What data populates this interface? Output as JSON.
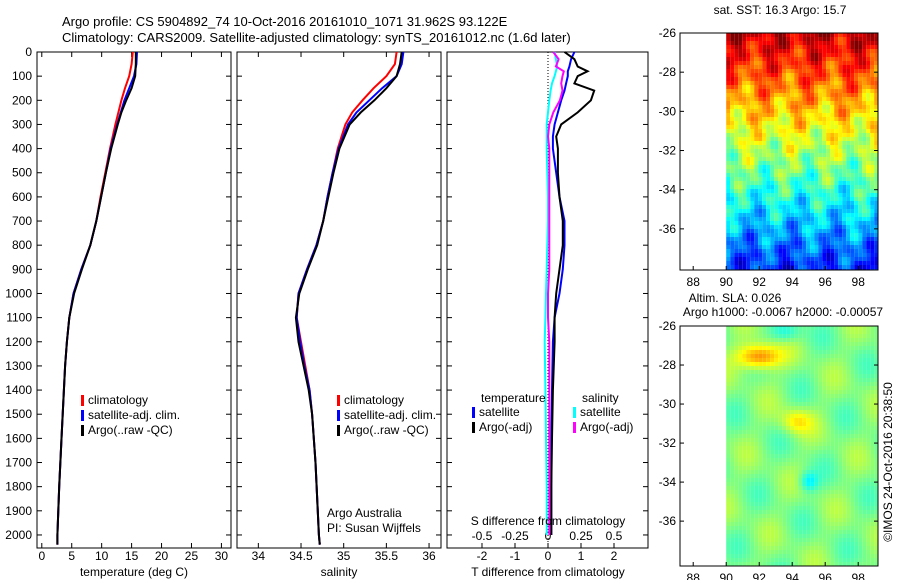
{
  "title_line1": "Argo profile: CS 5904892_74 10-Oct-2016 20161010_1071 31.962S 93.122E",
  "title_line2": "Climatology: CARS2009. Satellite-adjusted climatology: synTS_20161012.nc (1.6d later)",
  "credit": "Argo Australia",
  "pi": "PI: Susan Wijffels",
  "timestamp": "©IMOS 24-Oct-2016 20:38:50",
  "colors": {
    "climatology": "#ff0000",
    "satellite": "#0000ff",
    "argo": "#000000",
    "sal_satellite": "#00ffff",
    "sal_argo": "#ff00ff"
  },
  "chart_data": [
    {
      "type": "line",
      "id": "temperature",
      "xlabel": "temperature (deg C)",
      "ylabel": "",
      "xlim": [
        -0.8,
        31.6
      ],
      "ylim": [
        2054,
        0
      ],
      "xticks": [
        0,
        5,
        10,
        15,
        20,
        25,
        30
      ],
      "yticks": [
        0,
        100,
        200,
        300,
        400,
        500,
        600,
        700,
        800,
        900,
        1000,
        1100,
        1200,
        1300,
        1400,
        1500,
        1600,
        1700,
        1800,
        1900,
        2000
      ],
      "legend": [
        "climatology",
        "satellite-adj. clim.",
        "Argo(..raw -QC)"
      ],
      "depth": [
        0,
        50,
        100,
        150,
        200,
        250,
        300,
        400,
        500,
        600,
        700,
        800,
        900,
        1000,
        1100,
        1200,
        1300,
        1400,
        1600,
        1800,
        2000,
        2040
      ],
      "series": [
        {
          "name": "climatology",
          "values": [
            15.2,
            15.0,
            14.6,
            13.9,
            13.3,
            12.8,
            12.3,
            11.4,
            10.6,
            9.8,
            9.1,
            8.1,
            6.6,
            5.3,
            4.6,
            4.2,
            3.9,
            3.7,
            3.3,
            2.9,
            2.6,
            2.6
          ]
        },
        {
          "name": "satellite-adj. clim.",
          "values": [
            15.9,
            15.8,
            15.4,
            14.6,
            13.8,
            13.2,
            12.6,
            11.5,
            10.7,
            9.9,
            9.1,
            8.1,
            6.6,
            5.3,
            4.6,
            4.2,
            3.9,
            3.7,
            3.3,
            2.9,
            2.6,
            2.6
          ]
        },
        {
          "name": "Argo(..raw -QC)",
          "values": [
            15.7,
            15.7,
            15.6,
            15.0,
            14.1,
            13.3,
            12.7,
            11.6,
            10.7,
            9.9,
            9.1,
            8.1,
            6.7,
            5.4,
            4.6,
            4.2,
            3.9,
            3.7,
            3.3,
            2.9,
            2.6,
            2.6
          ]
        }
      ]
    },
    {
      "type": "line",
      "id": "salinity",
      "xlabel": "salinity",
      "xlim": [
        33.75,
        36.14
      ],
      "ylim": [
        2054,
        0
      ],
      "xticks": [
        34,
        34.5,
        35,
        35.5,
        36
      ],
      "legend": [
        "climatology",
        "satellite-adj. clim.",
        "Argo(..raw -QC)"
      ],
      "depth": [
        0,
        50,
        100,
        150,
        200,
        250,
        300,
        400,
        500,
        600,
        700,
        800,
        900,
        1000,
        1100,
        1200,
        1300,
        1400,
        1500,
        1700,
        2000,
        2040
      ],
      "series": [
        {
          "name": "climatology",
          "values": [
            35.62,
            35.6,
            35.5,
            35.35,
            35.22,
            35.1,
            35.02,
            34.93,
            34.87,
            34.81,
            34.76,
            34.68,
            34.57,
            34.47,
            34.45,
            34.5,
            34.55,
            34.6,
            34.63,
            34.67,
            34.71,
            34.72
          ]
        },
        {
          "name": "satellite-adj. clim.",
          "values": [
            35.7,
            35.68,
            35.62,
            35.45,
            35.3,
            35.15,
            35.05,
            34.94,
            34.87,
            34.81,
            34.76,
            34.68,
            34.57,
            34.47,
            34.45,
            34.49,
            34.54,
            34.6,
            34.63,
            34.67,
            34.71,
            34.72
          ]
        },
        {
          "name": "Argo(..raw -QC)",
          "values": [
            35.68,
            35.66,
            35.62,
            35.5,
            35.36,
            35.2,
            35.07,
            34.95,
            34.88,
            34.82,
            34.76,
            34.69,
            34.58,
            34.48,
            34.44,
            34.47,
            34.53,
            34.59,
            34.63,
            34.67,
            34.71,
            34.72
          ]
        }
      ]
    },
    {
      "type": "line",
      "id": "difference",
      "xlabel": "T difference from climatology",
      "x2label": "S difference from climatology",
      "xlim": [
        -3.06,
        3.03
      ],
      "xticks": [
        -2,
        -1,
        0,
        1,
        2
      ],
      "xticklabels": [
        "-2",
        "-1",
        "0",
        "1",
        "2"
      ],
      "s_ticks": [
        -0.5,
        -0.25,
        0,
        0.25,
        0.5
      ],
      "s_ticklabels": [
        "-0.5",
        "-0.25",
        "0",
        "0.25",
        "0.5"
      ],
      "legend_t_title": "temperature",
      "legend_s_title": "salinity",
      "legend_t": [
        "satellite",
        "Argo(-adj)"
      ],
      "legend_s": [
        "satellite",
        "Argo(-adj)"
      ],
      "depth": [
        0,
        30,
        60,
        80,
        100,
        130,
        160,
        200,
        250,
        300,
        350,
        400,
        500,
        600,
        700,
        800,
        900,
        1000,
        1100,
        1200,
        1400,
        1600,
        1800,
        2000
      ],
      "series": [
        {
          "name": "T satellite",
          "values": [
            0.8,
            0.7,
            0.65,
            0.6,
            0.6,
            0.55,
            0.5,
            0.4,
            0.3,
            0.2,
            0.15,
            0.15,
            0.25,
            0.35,
            0.5,
            0.5,
            0.45,
            0.35,
            0.2,
            0.15,
            0.12,
            0.1,
            0.1,
            0.1
          ]
        },
        {
          "name": "T Argo(-adj)",
          "values": [
            0.5,
            0.8,
            0.9,
            1.2,
            0.9,
            0.8,
            1.4,
            1.3,
            0.9,
            0.4,
            0.25,
            0.3,
            0.3,
            0.35,
            0.45,
            0.45,
            0.35,
            0.25,
            0.2,
            0.2,
            0.15,
            0.12,
            0.1,
            0.1
          ]
        },
        {
          "name": "S satellite",
          "values": [
            0.05,
            0.06,
            0.07,
            0.06,
            0.05,
            0.03,
            0.02,
            0.01,
            0.0,
            -0.01,
            -0.01,
            -0.01,
            -0.005,
            0.0,
            0.0,
            -0.005,
            -0.01,
            -0.015,
            -0.02,
            -0.025,
            -0.02,
            -0.015,
            -0.01,
            -0.01
          ]
        },
        {
          "name": "S Argo(-adj)",
          "values": [
            0.04,
            0.08,
            0.06,
            0.12,
            0.11,
            0.1,
            0.11,
            0.09,
            0.04,
            0.01,
            0.0,
            0.01,
            0.01,
            0.01,
            0.01,
            0.01,
            0.01,
            0.0,
            0.0,
            0.01,
            0.01,
            0.01,
            0.01,
            0.01
          ]
        }
      ]
    },
    {
      "type": "heatmap",
      "id": "sst-map",
      "title": "sat. SST: 16.3 Argo: 15.7",
      "xlim": [
        87.2,
        99.2
      ],
      "ylim": [
        -38.1,
        -26
      ],
      "xticks": [
        88,
        90,
        92,
        94,
        96,
        98
      ],
      "yticks": [
        -26,
        -28,
        -30,
        -32,
        -34,
        -36
      ],
      "data_lon_start": 90
    },
    {
      "type": "heatmap",
      "id": "sla-map",
      "title": "Altim. SLA: 0.026",
      "subtitle": "Argo h1000: -0.0067 h2000: -0.00057",
      "xlim": [
        87.2,
        99.2
      ],
      "ylim": [
        -38.3,
        -26
      ],
      "xticks": [
        88,
        90,
        92,
        94,
        96,
        98
      ],
      "yticks": [
        -26,
        -28,
        -30,
        -32,
        -34,
        -36
      ],
      "data_lon_start": 90
    }
  ]
}
